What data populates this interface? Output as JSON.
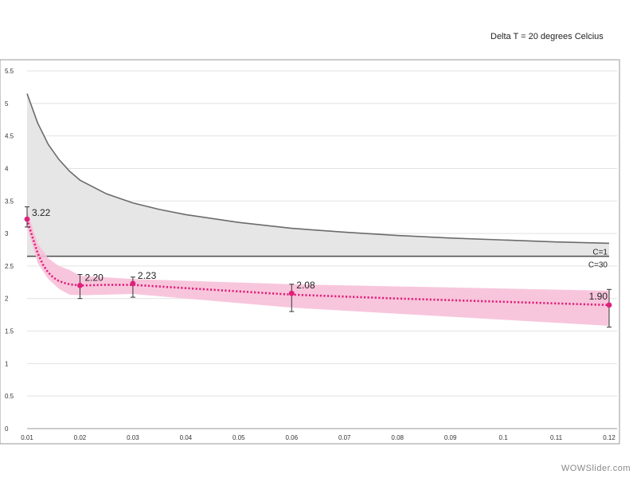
{
  "annotation": "Delta T = 20 degrees Celcius",
  "watermark": "WOWSlider.com",
  "chart_data": {
    "type": "line",
    "title": "",
    "xlabel": "",
    "ylabel": "",
    "xlim": [
      0.01,
      0.12
    ],
    "ylim": [
      0,
      5.5
    ],
    "x_ticks": [
      "0.01",
      "0.02",
      "0.03",
      "0.04",
      "0.05",
      "0.06",
      "0.07",
      "0.08",
      "0.09",
      "0.1",
      "0.11",
      "0.12"
    ],
    "y_ticks": [
      "0",
      "0.5",
      "1",
      "1.5",
      "2",
      "2.5",
      "3",
      "3.5",
      "4",
      "4.5",
      "5",
      "5.5"
    ],
    "grid": true,
    "curves": [
      {
        "label": "C=1",
        "color": "#6b6b6b",
        "x": [
          0.01,
          0.012,
          0.014,
          0.016,
          0.018,
          0.02,
          0.025,
          0.03,
          0.035,
          0.04,
          0.05,
          0.06,
          0.07,
          0.08,
          0.09,
          0.1,
          0.11,
          0.12
        ],
        "y": [
          5.15,
          4.7,
          4.37,
          4.14,
          3.96,
          3.82,
          3.61,
          3.47,
          3.37,
          3.29,
          3.17,
          3.08,
          3.02,
          2.97,
          2.93,
          2.9,
          2.87,
          2.85
        ]
      },
      {
        "label": "C=30",
        "color": "#555555",
        "x": [
          0.01,
          0.12
        ],
        "y": [
          2.65,
          2.65
        ]
      }
    ],
    "band": {
      "color": "#f7c0d8",
      "x": [
        0.01,
        0.012,
        0.014,
        0.016,
        0.018,
        0.02,
        0.03,
        0.06,
        0.12
      ],
      "upper": [
        3.35,
        2.85,
        2.62,
        2.5,
        2.44,
        2.35,
        2.3,
        2.22,
        2.12
      ],
      "lower": [
        3.1,
        2.55,
        2.3,
        2.15,
        2.06,
        2.05,
        2.07,
        1.86,
        1.58
      ]
    },
    "fit_line": {
      "color": "#e0207a",
      "x": [
        0.01,
        0.011,
        0.012,
        0.013,
        0.014,
        0.015,
        0.016,
        0.017,
        0.018,
        0.019,
        0.02,
        0.025,
        0.03,
        0.04,
        0.05,
        0.06,
        0.08,
        0.1,
        0.12
      ],
      "y": [
        3.22,
        2.95,
        2.7,
        2.52,
        2.4,
        2.32,
        2.27,
        2.24,
        2.22,
        2.21,
        2.2,
        2.21,
        2.21,
        2.16,
        2.11,
        2.06,
        2.0,
        1.95,
        1.9
      ]
    },
    "points": [
      {
        "x": 0.01,
        "y": 3.22,
        "err_low": 3.1,
        "err_high": 3.41,
        "label": "3.22"
      },
      {
        "x": 0.02,
        "y": 2.2,
        "err_low": 2.0,
        "err_high": 2.37,
        "label": "2.20"
      },
      {
        "x": 0.03,
        "y": 2.23,
        "err_low": 2.02,
        "err_high": 2.33,
        "label": "2.23"
      },
      {
        "x": 0.06,
        "y": 2.08,
        "err_low": 1.8,
        "err_high": 2.22,
        "label": "2.08"
      },
      {
        "x": 0.12,
        "y": 1.9,
        "err_low": 1.56,
        "err_high": 2.14,
        "label": "1.90"
      }
    ],
    "point_color": "#e0207a"
  }
}
